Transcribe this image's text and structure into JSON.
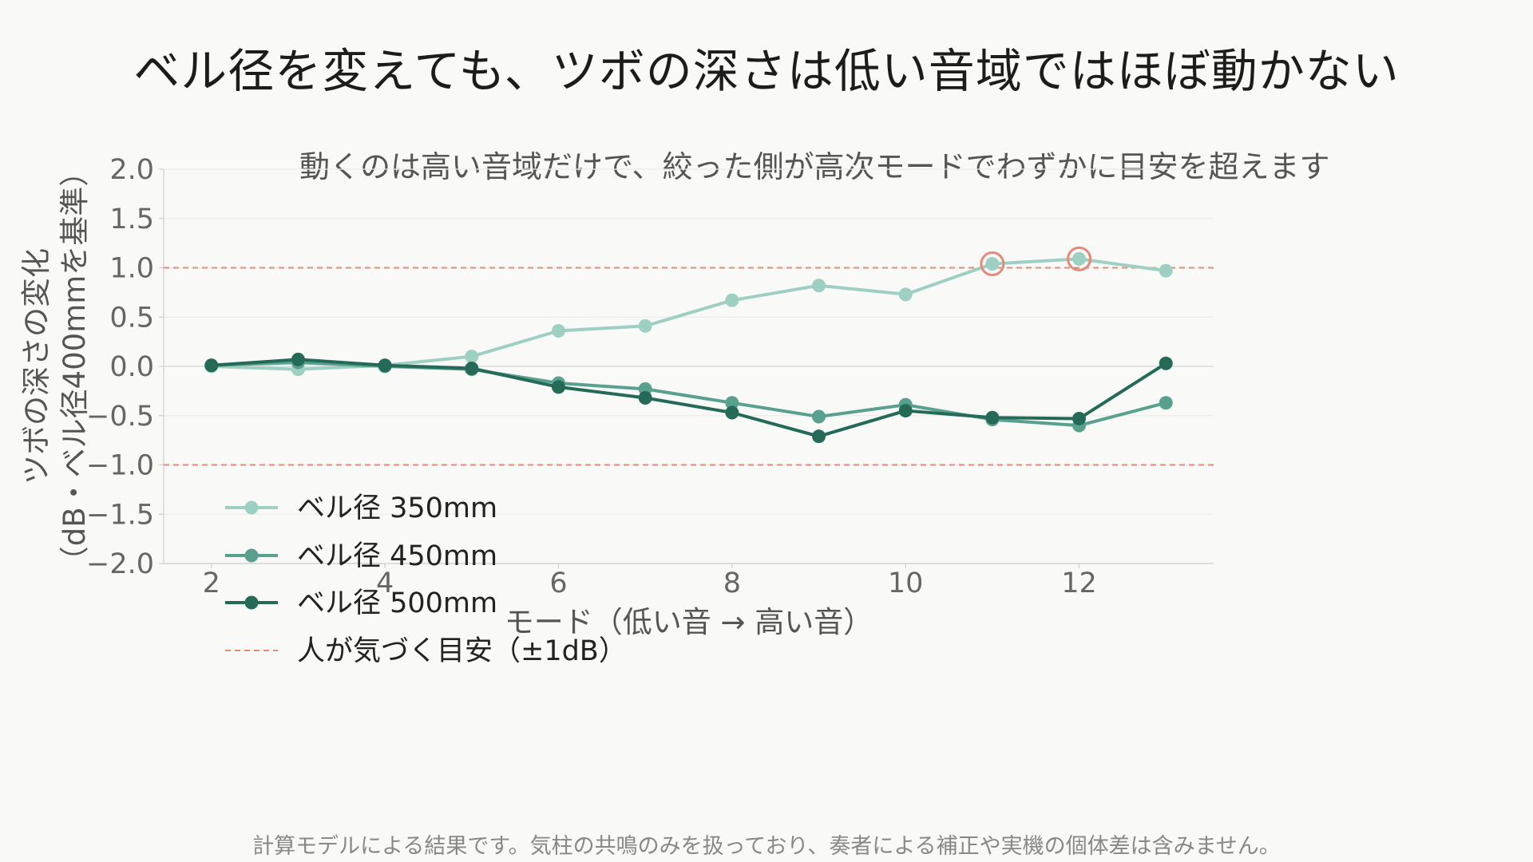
{
  "title": "ベル径を変えても、ツボの深さは低い音域ではほぼ動かない",
  "subtitle": "動くのは高い音域だけで、絞った側が高次モードでわずかに目安を超えます",
  "footnote": "計算モデルによる結果です。気柱の共鳴のみを扱っており、奏者による補正や実機の個体差は含みません。",
  "colors": {
    "background": "#f9f9f7",
    "series_350": "#9dd0c3",
    "series_450": "#5aa08f",
    "series_500": "#256a58",
    "threshold": "#e58a76",
    "highlight": "#e58a76"
  },
  "chart_data": {
    "type": "line",
    "xlabel": "モード（低い音 → 高い音）",
    "ylabel_line1": "ツボの深さの変化",
    "ylabel_line2": "（dB・ベル径400mmを基準）",
    "xlim": [
      1.45,
      13.55
    ],
    "ylim": [
      -2.0,
      2.0
    ],
    "xticks": [
      2,
      4,
      6,
      8,
      10,
      12
    ],
    "yticks": [
      2.0,
      1.5,
      1.0,
      0.5,
      0.0,
      -0.5,
      -1.0,
      -1.5,
      -2.0
    ],
    "ytick_labels": [
      "2.0",
      "1.5",
      "1.0",
      "0.5",
      "0.0",
      "−0.5",
      "−1.0",
      "−1.5",
      "−2.0"
    ],
    "grid": true,
    "legend_position": "lower-left",
    "x": [
      2,
      3,
      4,
      5,
      6,
      7,
      8,
      9,
      10,
      11,
      12,
      13
    ],
    "series": [
      {
        "name": "ベル径 350mm",
        "key": "series_350",
        "values": [
          0.0,
          -0.03,
          0.01,
          0.1,
          0.36,
          0.41,
          0.67,
          0.82,
          0.73,
          1.04,
          1.09,
          0.97
        ]
      },
      {
        "name": "ベル径 450mm",
        "key": "series_450",
        "values": [
          0.01,
          0.04,
          0.0,
          -0.03,
          -0.17,
          -0.23,
          -0.37,
          -0.51,
          -0.39,
          -0.54,
          -0.6,
          -0.37
        ]
      },
      {
        "name": "ベル径 500mm",
        "key": "series_500",
        "values": [
          0.01,
          0.07,
          0.01,
          -0.02,
          -0.21,
          -0.32,
          -0.47,
          -0.71,
          -0.45,
          -0.52,
          -0.53,
          0.03
        ]
      }
    ],
    "thresholds": [
      1.0,
      -1.0
    ],
    "threshold_label": "人が気づく目安（±1dB）",
    "highlighted_points": [
      {
        "series": "ベル径 350mm",
        "x": 11,
        "y": 1.04
      },
      {
        "series": "ベル径 350mm",
        "x": 12,
        "y": 1.09
      }
    ]
  }
}
